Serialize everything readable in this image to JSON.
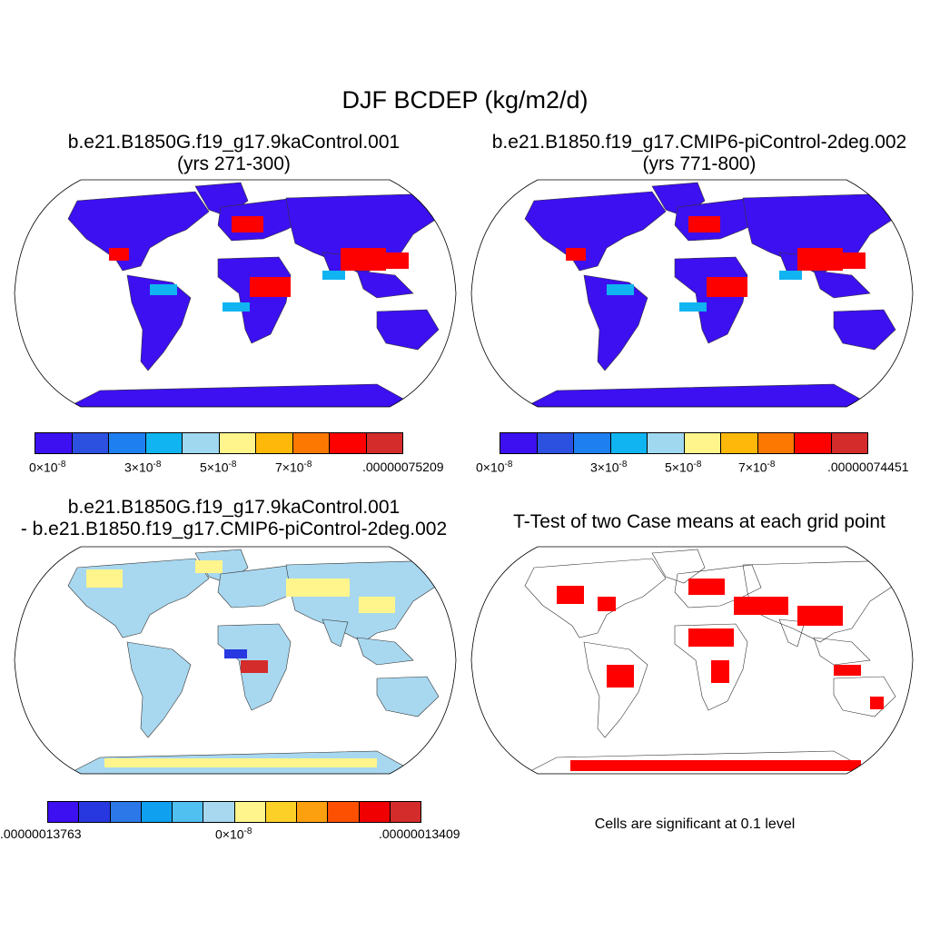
{
  "title": "DJF BCDEP (kg/m2/d)",
  "panels": {
    "top_left": {
      "title_line1": "b.e21.B1850G.f19_g17.9kaControl.001",
      "title_line2": "(yrs 271-300)",
      "colorbar": {
        "colors": [
          "#3c10f0",
          "#2c50e0",
          "#1e80f0",
          "#10b4f0",
          "#a0d8f0",
          "#fff58c",
          "#fdb80a",
          "#fd7800",
          "#fd0000",
          "#d42b2b"
        ],
        "labels": [
          {
            "mant": "0×10",
            "exp": "-8"
          },
          {
            "mant": "3×10",
            "exp": "-8"
          },
          {
            "mant": "5×10",
            "exp": "-8"
          },
          {
            "mant": "7×10",
            "exp": "-8"
          },
          {
            "mant": ".00000075209",
            "exp": ""
          }
        ]
      }
    },
    "top_right": {
      "title_line1": "b.e21.B1850.f19_g17.CMIP6-piControl-2deg.002",
      "title_line2": "(yrs 771-800)",
      "colorbar": {
        "colors": [
          "#3c10f0",
          "#2c50e0",
          "#1e80f0",
          "#10b4f0",
          "#a0d8f0",
          "#fff58c",
          "#fdb80a",
          "#fd7800",
          "#fd0000",
          "#d42b2b"
        ],
        "labels": [
          {
            "mant": "0×10",
            "exp": "-8"
          },
          {
            "mant": "3×10",
            "exp": "-8"
          },
          {
            "mant": "5×10",
            "exp": "-8"
          },
          {
            "mant": "7×10",
            "exp": "-8"
          },
          {
            "mant": ".00000074451",
            "exp": ""
          }
        ]
      }
    },
    "bottom_left": {
      "title_line1": "b.e21.B1850G.f19_g17.9kaControl.001",
      "title_line2": "- b.e21.B1850.f19_g17.CMIP6-piControl-2deg.002",
      "colorbar": {
        "colors": [
          "#3c10f0",
          "#2838e0",
          "#2c78e8",
          "#10a0f0",
          "#50c0f0",
          "#a8d8f0",
          "#fff58c",
          "#fdd028",
          "#fda010",
          "#fd5000",
          "#f00000",
          "#d42b2b"
        ],
        "labels": [
          {
            "mant": ".00000013763",
            "exp": ""
          },
          {
            "mant": "0×10",
            "exp": "-8"
          },
          {
            "mant": ".00000013409",
            "exp": ""
          }
        ]
      }
    },
    "bottom_right": {
      "title_line1": "T-Test of two Case means at each grid point",
      "note": "Cells are significant at 0.1 level"
    }
  },
  "map_colors": {
    "ocean": "#ffffff",
    "land_low": "#3c10f0",
    "land_mid": "#10b4f0",
    "land_high": "#fd0000",
    "diff_base": "#a8d8f0",
    "diff_pos": "#fff58c",
    "significant": "#ff0000"
  }
}
